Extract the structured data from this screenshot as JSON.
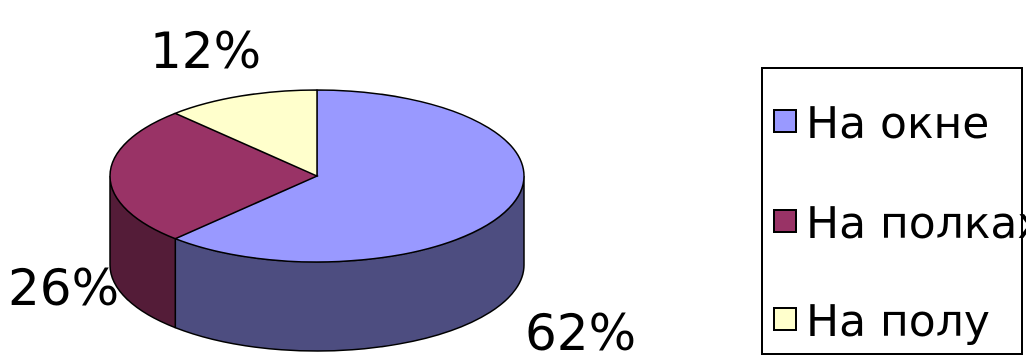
{
  "chart_data": {
    "type": "pie",
    "style": "3d",
    "categories": [
      "На окне",
      "На полках",
      "На полу"
    ],
    "values": [
      62,
      26,
      12
    ],
    "data_labels": [
      "62%",
      "26%",
      "12%"
    ],
    "colors": [
      "#9999ff",
      "#993366",
      "#ffffcc"
    ],
    "legend": "right"
  }
}
